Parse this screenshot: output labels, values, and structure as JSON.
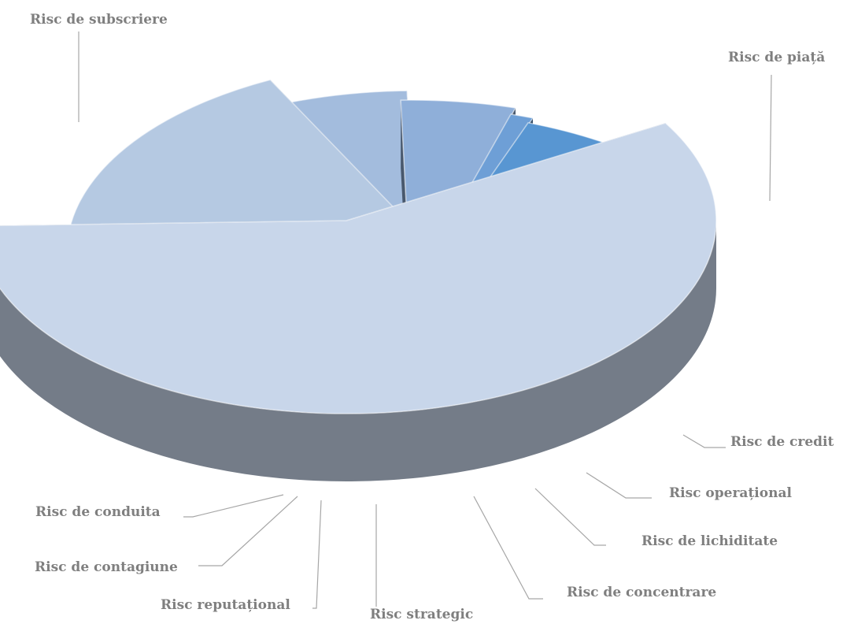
{
  "chart_data": {
    "type": "pie",
    "style": "3d-exploded",
    "legend": "none",
    "grid": false,
    "title": "",
    "slices": [
      {
        "label": "Risc de subscriere",
        "value": 58.0,
        "color": "#c8d6ea"
      },
      {
        "label": "Risc de piață",
        "value": 18.0,
        "color": "#b5c9e2"
      },
      {
        "label": "Risc de credit",
        "value": 7.0,
        "color": "#a3bcdd"
      },
      {
        "label": "Risc operațional",
        "value": 5.0,
        "color": "#8fafd9"
      },
      {
        "label": "Risc de lichiditate",
        "value": 1.0,
        "color": "#6e9fd6"
      },
      {
        "label": "Risc de concentrare",
        "value": 4.5,
        "color": "#5896d2"
      },
      {
        "label": "Risc strategic",
        "value": 4.0,
        "color": "#4a84c4"
      },
      {
        "label": "Risc reputațional",
        "value": 0.8,
        "color": "#4178b6"
      },
      {
        "label": "Risc de contagiune",
        "value": 0.8,
        "color": "#3a6ea8"
      },
      {
        "label": "Risc de conduita",
        "value": 0.9,
        "color": "#33649a"
      }
    ]
  }
}
